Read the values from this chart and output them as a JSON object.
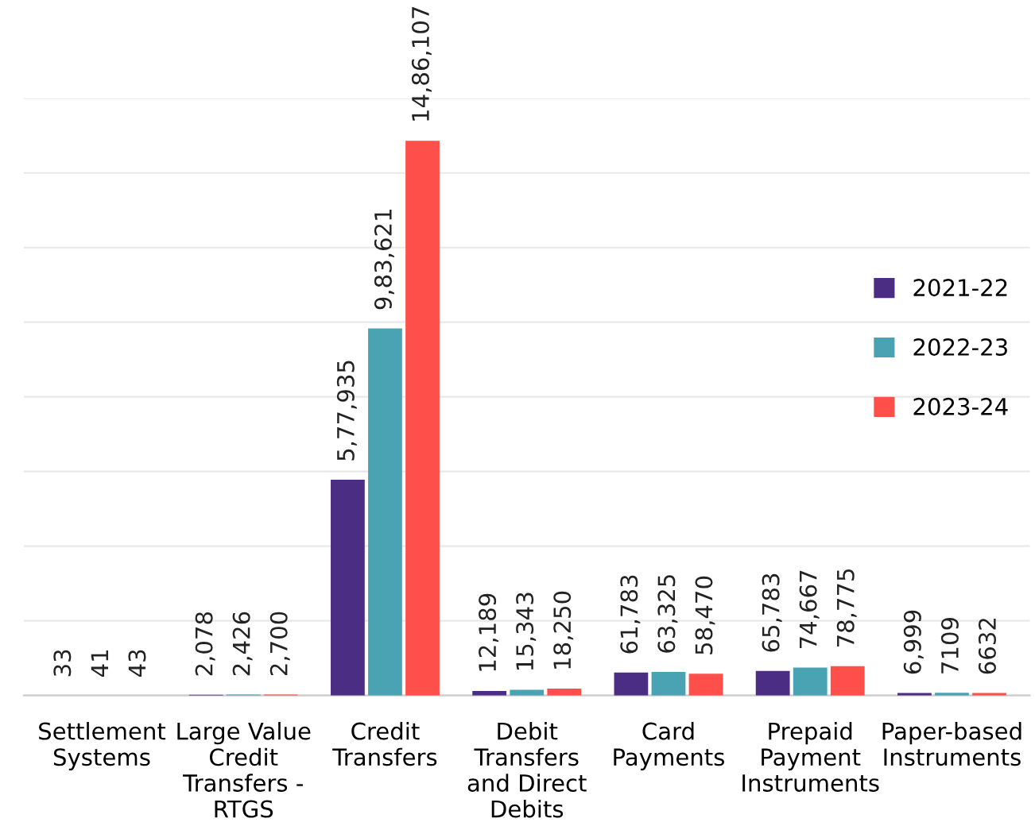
{
  "chart_data": {
    "type": "bar",
    "categories": [
      "Settlement\nSystems",
      "Large Value\nCredit\nTransfers -\nRTGS",
      "Credit\nTransfers",
      "Debit\nTransfers\nand Direct\nDebits",
      "Card\nPayments",
      "Prepaid\nPayment\nInstruments",
      "Paper-based\nInstruments"
    ],
    "series": [
      {
        "name": "2021-22",
        "color": "#4b2e83",
        "values": [
          33,
          2078,
          577935,
          12189,
          61783,
          65783,
          6999
        ],
        "value_labels": [
          "33",
          "2,078",
          "5,77,935",
          "12,189",
          "61,783",
          "65,783",
          "6,999"
        ]
      },
      {
        "name": "2022-23",
        "color": "#4aa3b3",
        "values": [
          41,
          2426,
          983621,
          15343,
          63325,
          74667,
          7109
        ],
        "value_labels": [
          "41",
          "2,426",
          "9,83,621",
          "15,343",
          "63,325",
          "74,667",
          "7109"
        ]
      },
      {
        "name": "2023-24",
        "color": "#ff4f4b",
        "values": [
          43,
          2700,
          1486107,
          18250,
          58470,
          78775,
          6632
        ],
        "value_labels": [
          "43",
          "2,700",
          "14,86,107",
          "18,250",
          "58,470",
          "78,775",
          "6632"
        ]
      }
    ],
    "ylim": [
      0,
      1600000
    ],
    "yticks": [
      {
        "value": 0,
        "label": null
      },
      {
        "value": 200000,
        "label": null
      },
      {
        "value": 400000,
        "label": null
      },
      {
        "value": 600000,
        "label": null
      },
      {
        "value": 800000,
        "label": null
      },
      {
        "value": 1000000,
        "label": null
      },
      {
        "value": 1200000,
        "label": null
      },
      {
        "value": 1400000,
        "label": null
      },
      {
        "value": 1600000,
        "label": null
      }
    ],
    "grid": "y",
    "legend": "right",
    "tick_labels": "x"
  }
}
